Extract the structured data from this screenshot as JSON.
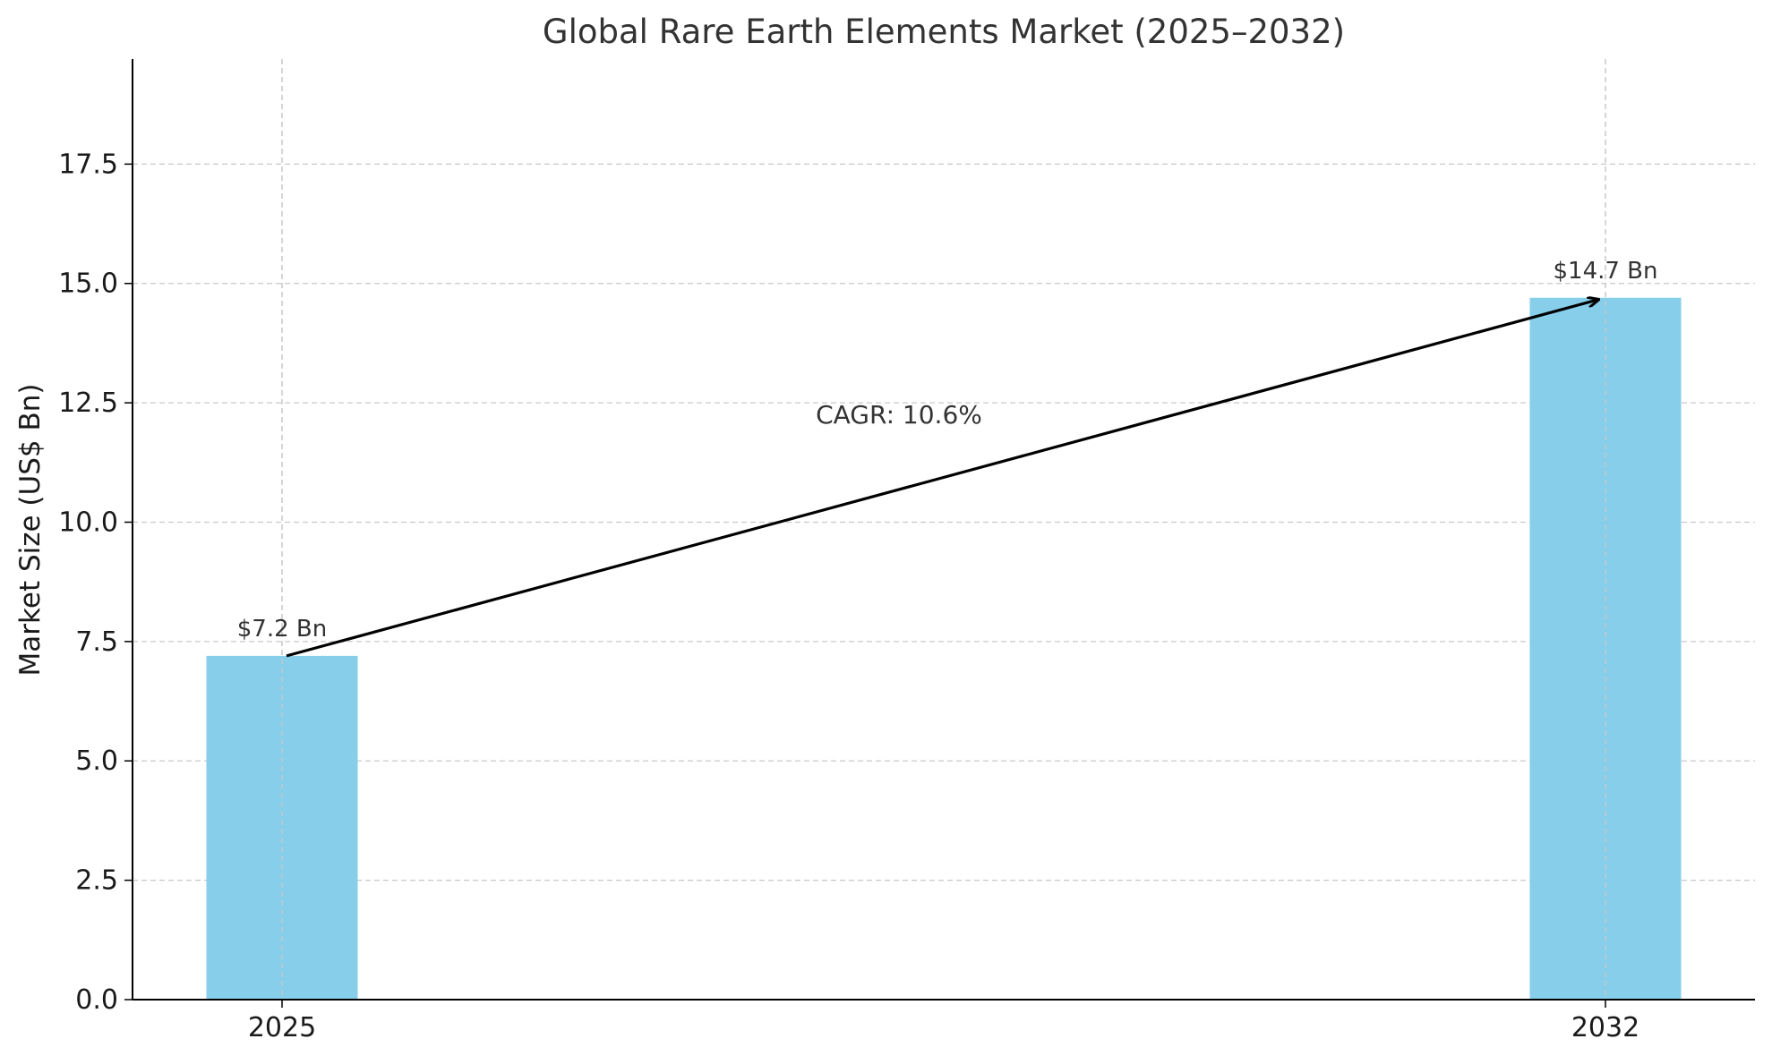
{
  "chart_data": {
    "type": "bar",
    "title": "Global Rare Earth Elements Market (2025–2032)",
    "xlabel": "",
    "ylabel": "Market Size (US$ Bn)",
    "categories": [
      "2025",
      "2032"
    ],
    "values": [
      7.2,
      14.7
    ],
    "data_labels": [
      "$7.2 Bn",
      "$14.7 Bn"
    ],
    "ylim": [
      0,
      19.7
    ],
    "yticks": [
      0.0,
      2.5,
      5.0,
      7.5,
      10.0,
      12.5,
      15.0,
      17.5
    ],
    "ytick_labels": [
      "0.0",
      "2.5",
      "5.0",
      "7.5",
      "10.0",
      "12.5",
      "15.0",
      "17.5"
    ],
    "grid": true,
    "bar_color": "#87CEEB",
    "annotation": {
      "text": "CAGR: 10.6%",
      "arrow_from": {
        "category": "2025",
        "value": 7.2
      },
      "arrow_to": {
        "category": "2032",
        "value": 14.7
      },
      "text_position": {
        "category_fraction": 0.5,
        "value": 12.0
      }
    }
  }
}
